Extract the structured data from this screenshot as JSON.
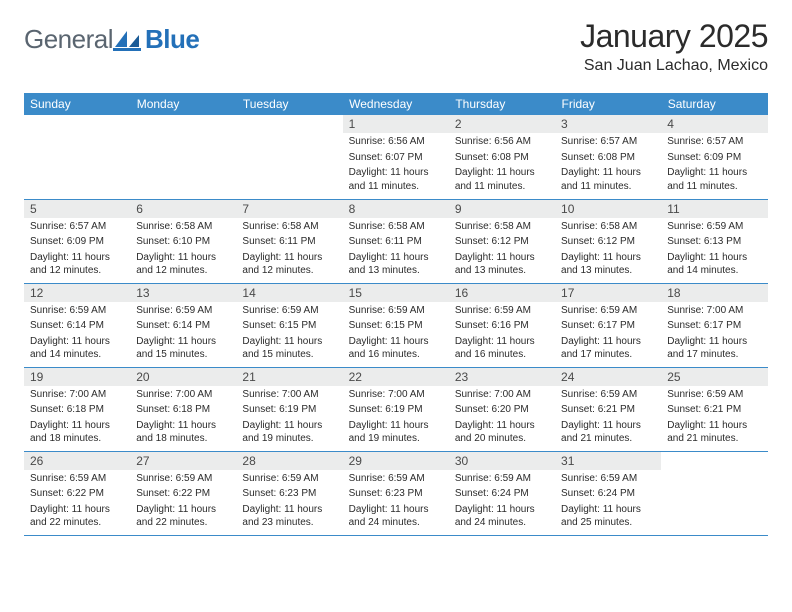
{
  "brand": {
    "name_part1": "General",
    "name_part2": "Blue"
  },
  "title": "January 2025",
  "location": "San Juan Lachao, Mexico",
  "colors": {
    "header_bg": "#3b8bc9",
    "header_fg": "#ffffff",
    "daynum_bg": "#ebecec",
    "text": "#2b2b2b",
    "logo_gray": "#5a6570",
    "logo_blue": "#2370b8",
    "border": "#3b8bc9"
  },
  "typography": {
    "title_fontsize": 32,
    "location_fontsize": 16,
    "weekday_fontsize": 12,
    "daynum_fontsize": 12,
    "body_fontsize": 10
  },
  "weekdays": [
    "Sunday",
    "Monday",
    "Tuesday",
    "Wednesday",
    "Thursday",
    "Friday",
    "Saturday"
  ],
  "weeks": [
    [
      null,
      null,
      null,
      {
        "n": "1",
        "sr": "6:56 AM",
        "ss": "6:07 PM",
        "dl": "11 hours and 11 minutes."
      },
      {
        "n": "2",
        "sr": "6:56 AM",
        "ss": "6:08 PM",
        "dl": "11 hours and 11 minutes."
      },
      {
        "n": "3",
        "sr": "6:57 AM",
        "ss": "6:08 PM",
        "dl": "11 hours and 11 minutes."
      },
      {
        "n": "4",
        "sr": "6:57 AM",
        "ss": "6:09 PM",
        "dl": "11 hours and 11 minutes."
      }
    ],
    [
      {
        "n": "5",
        "sr": "6:57 AM",
        "ss": "6:09 PM",
        "dl": "11 hours and 12 minutes."
      },
      {
        "n": "6",
        "sr": "6:58 AM",
        "ss": "6:10 PM",
        "dl": "11 hours and 12 minutes."
      },
      {
        "n": "7",
        "sr": "6:58 AM",
        "ss": "6:11 PM",
        "dl": "11 hours and 12 minutes."
      },
      {
        "n": "8",
        "sr": "6:58 AM",
        "ss": "6:11 PM",
        "dl": "11 hours and 13 minutes."
      },
      {
        "n": "9",
        "sr": "6:58 AM",
        "ss": "6:12 PM",
        "dl": "11 hours and 13 minutes."
      },
      {
        "n": "10",
        "sr": "6:58 AM",
        "ss": "6:12 PM",
        "dl": "11 hours and 13 minutes."
      },
      {
        "n": "11",
        "sr": "6:59 AM",
        "ss": "6:13 PM",
        "dl": "11 hours and 14 minutes."
      }
    ],
    [
      {
        "n": "12",
        "sr": "6:59 AM",
        "ss": "6:14 PM",
        "dl": "11 hours and 14 minutes."
      },
      {
        "n": "13",
        "sr": "6:59 AM",
        "ss": "6:14 PM",
        "dl": "11 hours and 15 minutes."
      },
      {
        "n": "14",
        "sr": "6:59 AM",
        "ss": "6:15 PM",
        "dl": "11 hours and 15 minutes."
      },
      {
        "n": "15",
        "sr": "6:59 AM",
        "ss": "6:15 PM",
        "dl": "11 hours and 16 minutes."
      },
      {
        "n": "16",
        "sr": "6:59 AM",
        "ss": "6:16 PM",
        "dl": "11 hours and 16 minutes."
      },
      {
        "n": "17",
        "sr": "6:59 AM",
        "ss": "6:17 PM",
        "dl": "11 hours and 17 minutes."
      },
      {
        "n": "18",
        "sr": "7:00 AM",
        "ss": "6:17 PM",
        "dl": "11 hours and 17 minutes."
      }
    ],
    [
      {
        "n": "19",
        "sr": "7:00 AM",
        "ss": "6:18 PM",
        "dl": "11 hours and 18 minutes."
      },
      {
        "n": "20",
        "sr": "7:00 AM",
        "ss": "6:18 PM",
        "dl": "11 hours and 18 minutes."
      },
      {
        "n": "21",
        "sr": "7:00 AM",
        "ss": "6:19 PM",
        "dl": "11 hours and 19 minutes."
      },
      {
        "n": "22",
        "sr": "7:00 AM",
        "ss": "6:19 PM",
        "dl": "11 hours and 19 minutes."
      },
      {
        "n": "23",
        "sr": "7:00 AM",
        "ss": "6:20 PM",
        "dl": "11 hours and 20 minutes."
      },
      {
        "n": "24",
        "sr": "6:59 AM",
        "ss": "6:21 PM",
        "dl": "11 hours and 21 minutes."
      },
      {
        "n": "25",
        "sr": "6:59 AM",
        "ss": "6:21 PM",
        "dl": "11 hours and 21 minutes."
      }
    ],
    [
      {
        "n": "26",
        "sr": "6:59 AM",
        "ss": "6:22 PM",
        "dl": "11 hours and 22 minutes."
      },
      {
        "n": "27",
        "sr": "6:59 AM",
        "ss": "6:22 PM",
        "dl": "11 hours and 22 minutes."
      },
      {
        "n": "28",
        "sr": "6:59 AM",
        "ss": "6:23 PM",
        "dl": "11 hours and 23 minutes."
      },
      {
        "n": "29",
        "sr": "6:59 AM",
        "ss": "6:23 PM",
        "dl": "11 hours and 24 minutes."
      },
      {
        "n": "30",
        "sr": "6:59 AM",
        "ss": "6:24 PM",
        "dl": "11 hours and 24 minutes."
      },
      {
        "n": "31",
        "sr": "6:59 AM",
        "ss": "6:24 PM",
        "dl": "11 hours and 25 minutes."
      },
      null
    ]
  ],
  "labels": {
    "sunrise": "Sunrise:",
    "sunset": "Sunset:",
    "daylight": "Daylight:"
  }
}
